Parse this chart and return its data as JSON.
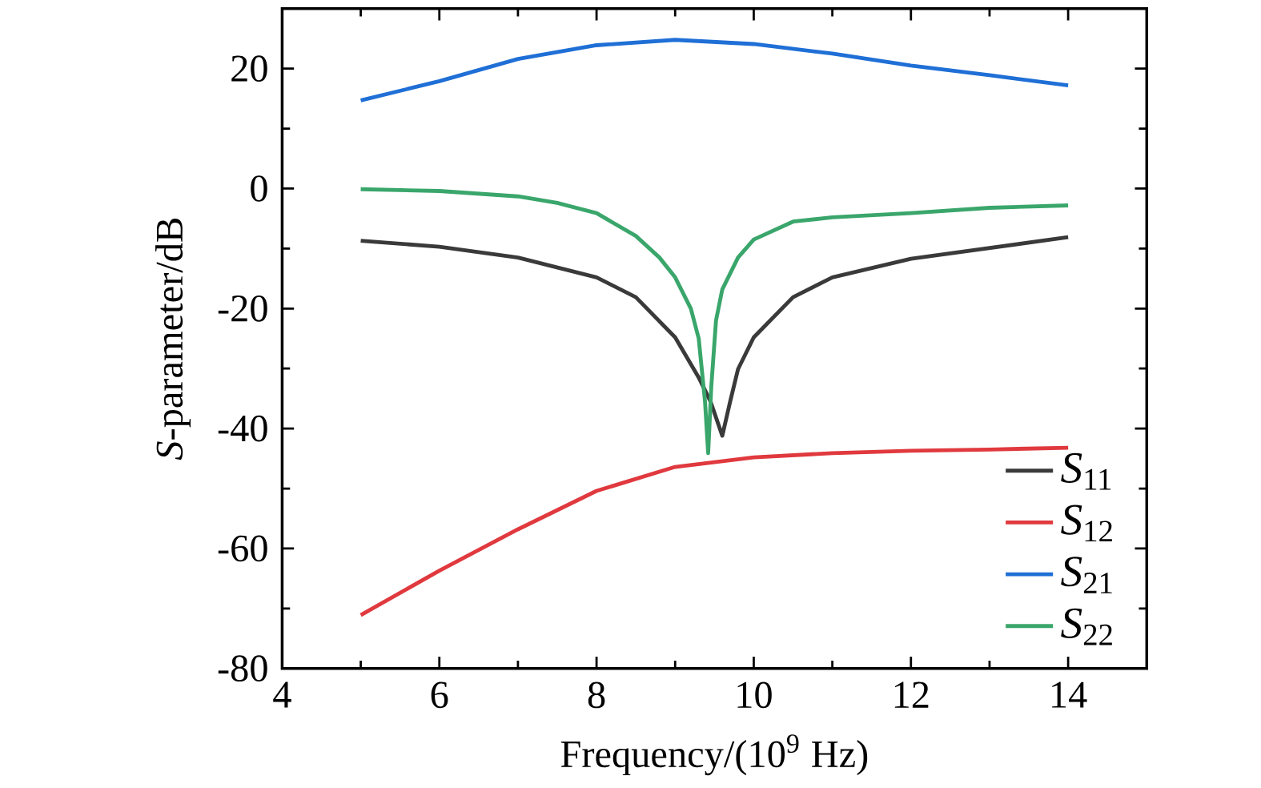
{
  "chart_data": {
    "type": "line",
    "xlabel": "Frequency/(10$^{9}$ Hz)",
    "ylabel": "*S*-parameter/dB",
    "xlim": [
      4,
      15
    ],
    "ylim": [
      -80,
      30
    ],
    "xticks": [
      4,
      6,
      8,
      10,
      12,
      14
    ],
    "yticks": [
      -80,
      -60,
      -40,
      -20,
      0,
      20
    ],
    "legend": "bottom right",
    "grid": false,
    "marker": "none",
    "line_style": "solid",
    "series": [
      {
        "name": "*S*$_{11}$",
        "color": "#3a3a3a",
        "x": [
          5,
          6,
          7,
          8,
          8.5,
          9,
          9.3,
          9.45,
          9.6,
          9.7,
          9.8,
          10,
          10.5,
          11,
          12,
          13,
          14
        ],
        "values": [
          -8.7,
          -9.7,
          -11.5,
          -14.8,
          -18.1,
          -24.8,
          -31.5,
          -35.5,
          -41.2,
          -35.5,
          -30.1,
          -24.8,
          -18.1,
          -14.8,
          -11.7,
          -9.9,
          -8.1
        ]
      },
      {
        "name": "*S*$_{12}$",
        "color": "#e0393e",
        "x": [
          5,
          6,
          7,
          8,
          9,
          10,
          11,
          12,
          13,
          14
        ],
        "values": [
          -71.1,
          -63.7,
          -56.8,
          -50.4,
          -46.4,
          -44.8,
          -44.1,
          -43.7,
          -43.5,
          -43.2
        ]
      },
      {
        "name": "*S*$_{21}$",
        "color": "#1f6fd6",
        "x": [
          5,
          6,
          7,
          8,
          9,
          10,
          11,
          12,
          13,
          14
        ],
        "values": [
          14.7,
          17.9,
          21.6,
          23.9,
          24.8,
          24.1,
          22.5,
          20.5,
          18.9,
          17.2
        ]
      },
      {
        "name": "*S*$_{22}$",
        "color": "#3aa66b",
        "x": [
          5,
          6,
          7,
          7.5,
          8,
          8.5,
          8.8,
          9,
          9.2,
          9.3,
          9.38,
          9.42,
          9.46,
          9.52,
          9.6,
          9.8,
          10,
          10.5,
          11,
          12,
          13,
          14
        ],
        "values": [
          -0.1,
          -0.4,
          -1.3,
          -2.4,
          -4.1,
          -7.9,
          -11.5,
          -14.8,
          -20,
          -25,
          -35.5,
          -44.1,
          -33,
          -22,
          -16.8,
          -11.5,
          -8.5,
          -5.5,
          -4.8,
          -4.1,
          -3.2,
          -2.8
        ]
      }
    ]
  }
}
